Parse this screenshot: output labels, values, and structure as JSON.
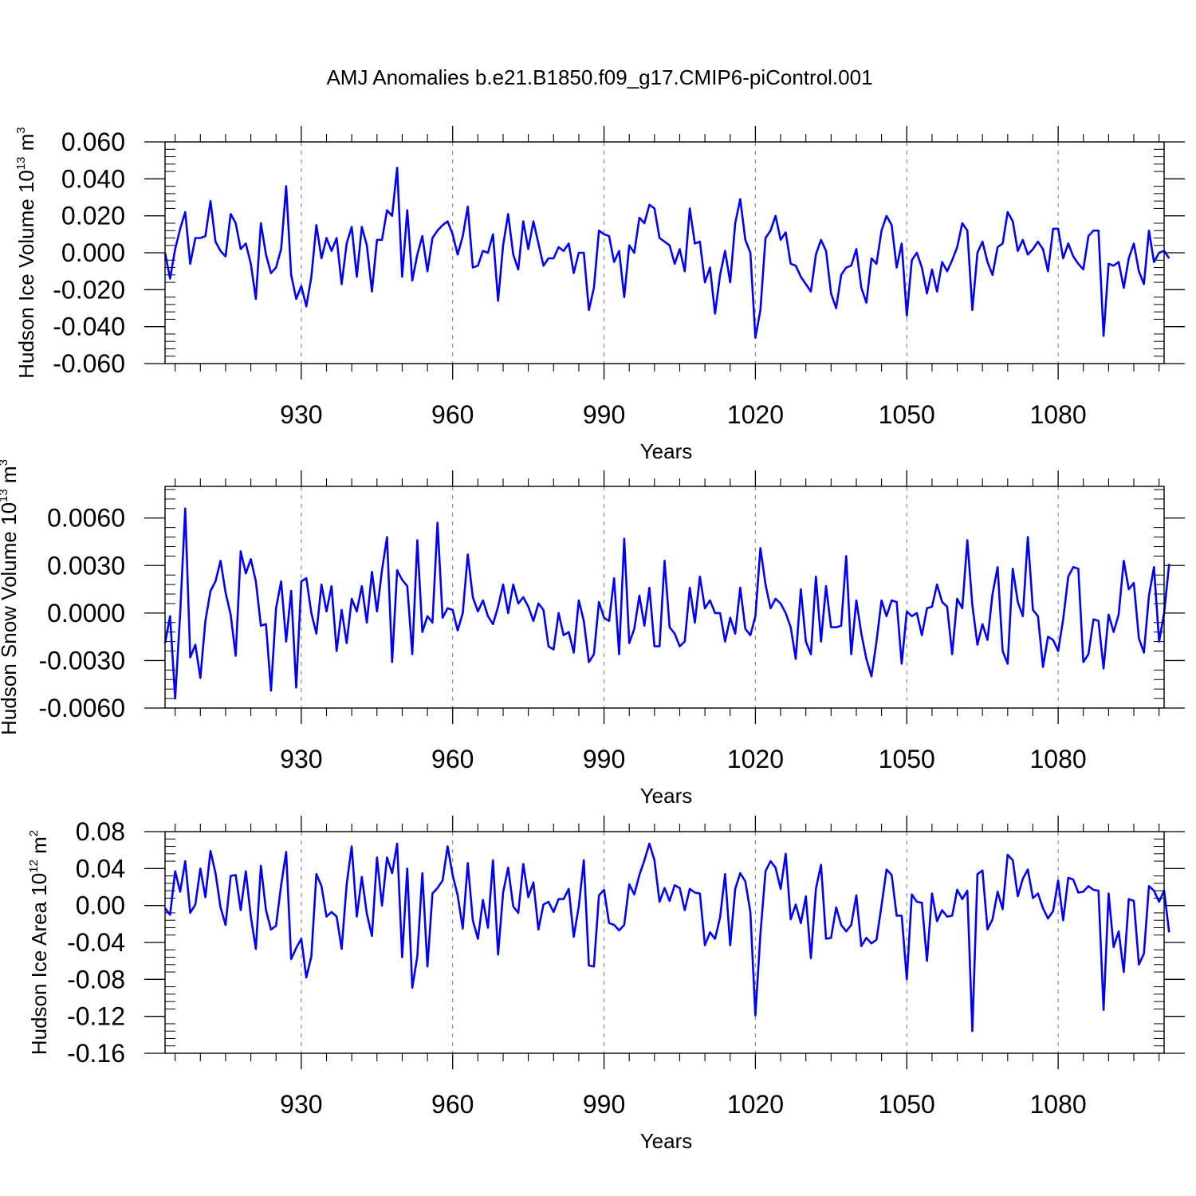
{
  "chart_data": {
    "type": "line",
    "title": "AMJ Anomalies b.e21.B1850.f09_g17.CMIP6-piControl.001",
    "panels": [
      {
        "id": "ice-volume",
        "ylabel_prefix": "Hudson Ice Volume 10",
        "ylabel_exp": "13",
        "ylabel_unit": " m",
        "ylabel_unit_exp": "3",
        "xlabel": "Years",
        "xlim": [
          903,
          1101
        ],
        "ylim": [
          -0.06,
          0.06
        ],
        "yticks": [
          -0.06,
          -0.04,
          -0.02,
          0.0,
          0.02,
          0.04,
          0.06
        ],
        "ytick_labels": [
          "-0.060",
          "-0.040",
          "-0.020",
          "0.000",
          "0.020",
          "0.040",
          "0.060"
        ],
        "xticks": [
          930,
          960,
          990,
          1020,
          1050,
          1080
        ],
        "xtick_labels": [
          "930",
          "960",
          "990",
          "1020",
          "1050",
          "1080"
        ],
        "line_color": "#0000ff",
        "series": [
          {
            "name": "Hudson Ice Volume",
            "start_year": 903,
            "values": [
              0.0,
              -0.014,
              0.002,
              0.013,
              0.022,
              -0.006,
              0.008,
              0.008,
              0.009,
              0.028,
              0.006,
              0.001,
              -0.002,
              0.021,
              0.016,
              0.002,
              0.005,
              -0.006,
              -0.025,
              0.016,
              -0.001,
              -0.011,
              -0.008,
              0.002,
              0.036,
              -0.012,
              -0.025,
              -0.018,
              -0.029,
              -0.013,
              0.015,
              -0.003,
              0.008,
              0.001,
              0.008,
              -0.017,
              0.005,
              0.014,
              -0.013,
              0.014,
              0.004,
              -0.021,
              0.007,
              0.007,
              0.023,
              0.02,
              0.046,
              -0.013,
              0.023,
              -0.015,
              -0.001,
              0.009,
              -0.01,
              0.008,
              0.012,
              0.015,
              0.017,
              0.01,
              -0.001,
              0.009,
              0.025,
              -0.008,
              -0.007,
              0.001,
              0.0,
              0.01,
              -0.026,
              0.004,
              0.021,
              -0.001,
              -0.009,
              0.017,
              0.002,
              0.017,
              0.005,
              -0.007,
              -0.003,
              -0.003,
              0.003,
              0.001,
              0.005,
              -0.011,
              0.0,
              0.0,
              -0.031,
              -0.019,
              0.012,
              0.01,
              0.009,
              -0.005,
              0.001,
              -0.024,
              0.004,
              0.0,
              0.019,
              0.016,
              0.026,
              0.024,
              0.008,
              0.006,
              0.004,
              -0.006,
              0.002,
              -0.01,
              0.024,
              0.005,
              0.006,
              -0.016,
              -0.008,
              -0.033,
              -0.012,
              0.001,
              -0.016,
              0.016,
              0.029,
              0.007,
              0.0,
              -0.046,
              -0.031,
              0.008,
              0.012,
              0.02,
              0.007,
              0.011,
              -0.006,
              -0.007,
              -0.013,
              -0.017,
              -0.021,
              -0.001,
              0.007,
              0.001,
              -0.022,
              -0.03,
              -0.012,
              -0.008,
              -0.007,
              0.002,
              -0.019,
              -0.027,
              -0.003,
              -0.006,
              0.012,
              0.02,
              0.015,
              -0.008,
              0.005,
              -0.034,
              -0.004,
              0.0,
              -0.008,
              -0.022,
              -0.009,
              -0.021,
              -0.005,
              -0.01,
              -0.004,
              0.003,
              0.016,
              0.012,
              -0.031,
              0.0,
              0.006,
              -0.005,
              -0.012,
              0.003,
              0.005,
              0.022,
              0.017,
              0.001,
              0.007,
              -0.001,
              0.002,
              0.006,
              0.002,
              -0.01,
              0.013,
              0.013,
              -0.003,
              0.005,
              -0.002,
              -0.006,
              -0.009,
              0.009,
              0.012,
              0.012,
              -0.045,
              -0.006,
              -0.007,
              -0.005,
              -0.019,
              -0.003,
              0.005,
              -0.01,
              -0.017,
              0.012,
              -0.005,
              0.0,
              0.001,
              -0.003
            ]
          }
        ]
      },
      {
        "id": "snow-volume",
        "ylabel_prefix": "Hudson Snow Volume 10",
        "ylabel_exp": "13",
        "ylabel_unit": " m",
        "ylabel_unit_exp": "3",
        "xlabel": "Years",
        "xlim": [
          903,
          1101
        ],
        "ylim": [
          -0.006,
          0.008
        ],
        "yticks": [
          -0.006,
          -0.003,
          0.0,
          0.003,
          0.006
        ],
        "ytick_labels": [
          "-0.0060",
          "-0.0030",
          "0.0000",
          "0.0030",
          "0.0060"
        ],
        "xticks": [
          930,
          960,
          990,
          1020,
          1050,
          1080
        ],
        "xtick_labels": [
          "930",
          "960",
          "990",
          "1020",
          "1050",
          "1080"
        ],
        "line_color": "#0000ff",
        "series": [
          {
            "name": "Hudson Snow Volume",
            "start_year": 903,
            "values": [
              -0.0019,
              -0.0002,
              -0.0054,
              0.0,
              0.0066,
              -0.0028,
              -0.002,
              -0.0041,
              -0.0005,
              0.0014,
              0.002,
              0.0033,
              0.0013,
              -0.0001,
              -0.0027,
              0.0039,
              0.0025,
              0.0034,
              0.002,
              -0.0008,
              -0.0007,
              -0.0049,
              0.0003,
              0.002,
              -0.0018,
              0.0014,
              -0.0047,
              0.002,
              0.0022,
              0.0,
              -0.0013,
              0.0018,
              0.0001,
              0.0017,
              -0.0024,
              0.0002,
              -0.0019,
              0.0009,
              0.0001,
              0.0017,
              -0.0006,
              0.0026,
              0.0001,
              0.0027,
              0.0048,
              -0.0031,
              0.0027,
              0.0021,
              0.0017,
              -0.0026,
              0.0046,
              -0.0012,
              -0.0002,
              -0.0006,
              0.0057,
              -0.0003,
              0.0003,
              0.0002,
              -0.0011,
              0.0,
              0.0037,
              0.001,
              0.0001,
              0.0008,
              -0.0002,
              -0.0007,
              0.0004,
              0.0018,
              0.0,
              0.0018,
              0.0006,
              0.001,
              0.0004,
              -0.0005,
              0.0006,
              0.0002,
              -0.0021,
              -0.0023,
              0.0,
              -0.0014,
              -0.0012,
              -0.0025,
              0.0008,
              -0.0005,
              -0.0031,
              -0.0026,
              0.0007,
              -0.0003,
              -0.0005,
              0.0022,
              -0.0026,
              0.0047,
              -0.0019,
              -0.001,
              0.0011,
              -0.0008,
              0.0016,
              -0.0021,
              -0.0021,
              0.0033,
              -0.0009,
              -0.0013,
              -0.0021,
              -0.0018,
              0.0016,
              -0.0006,
              0.0023,
              0.0003,
              0.0008,
              0.0,
              0.0,
              -0.0018,
              -0.0003,
              -0.0013,
              0.0016,
              -0.001,
              -0.0014,
              -0.0002,
              0.0041,
              0.0018,
              0.0003,
              0.0009,
              0.0006,
              0.0,
              -0.0009,
              -0.0029,
              0.0015,
              -0.0018,
              -0.0026,
              0.0023,
              -0.0018,
              0.0017,
              -0.0009,
              -0.0009,
              -0.0008,
              0.0036,
              -0.0026,
              0.0008,
              -0.0013,
              -0.0029,
              -0.004,
              -0.0018,
              0.0008,
              -0.0002,
              0.0008,
              0.0007,
              -0.0032,
              0.0001,
              -0.0002,
              0.0,
              -0.0014,
              0.0003,
              0.0004,
              0.0018,
              0.0007,
              0.0004,
              -0.0026,
              0.0009,
              0.0003,
              0.0046,
              0.0005,
              -0.002,
              -0.0007,
              -0.0017,
              0.0012,
              0.0029,
              -0.0024,
              -0.0032,
              0.0028,
              0.0007,
              -0.0002,
              0.0048,
              0.0002,
              -0.0002,
              -0.0034,
              -0.0015,
              -0.0017,
              -0.0024,
              -0.0004,
              0.0023,
              0.0029,
              0.0028,
              -0.0031,
              -0.0026,
              -0.0004,
              -0.0005,
              -0.0035,
              -0.0001,
              -0.0012,
              -0.0001,
              0.0033,
              0.0015,
              0.0019,
              -0.0016,
              -0.0025,
              0.0011,
              0.0029,
              -0.0018,
              0.0,
              0.0031
            ]
          }
        ]
      },
      {
        "id": "ice-area",
        "ylabel_prefix": "Hudson Ice Area 10",
        "ylabel_exp": "12",
        "ylabel_unit": " m",
        "ylabel_unit_exp": "2",
        "xlabel": "Years",
        "xlim": [
          903,
          1101
        ],
        "ylim": [
          -0.16,
          0.08
        ],
        "yticks": [
          -0.16,
          -0.12,
          -0.08,
          -0.04,
          0.0,
          0.04,
          0.08
        ],
        "ytick_labels": [
          "-0.16",
          "-0.12",
          "-0.08",
          "-0.04",
          "0.00",
          "0.04",
          "0.08"
        ],
        "xticks": [
          930,
          960,
          990,
          1020,
          1050,
          1080
        ],
        "xtick_labels": [
          "930",
          "960",
          "990",
          "1020",
          "1050",
          "1080"
        ],
        "line_color": "#0000ff",
        "series": [
          {
            "name": "Hudson Ice Area",
            "start_year": 903,
            "values": [
              -0.003,
              -0.01,
              0.037,
              0.015,
              0.048,
              -0.008,
              0.001,
              0.04,
              0.009,
              0.059,
              0.035,
              -0.002,
              -0.021,
              0.032,
              0.033,
              -0.005,
              0.037,
              -0.012,
              -0.047,
              0.043,
              -0.005,
              -0.026,
              -0.022,
              0.022,
              0.058,
              -0.058,
              -0.046,
              -0.036,
              -0.078,
              -0.055,
              0.034,
              0.021,
              -0.012,
              -0.007,
              -0.012,
              -0.047,
              0.023,
              0.064,
              -0.012,
              0.031,
              -0.009,
              -0.033,
              0.052,
              0.0,
              0.052,
              0.035,
              0.067,
              -0.056,
              0.04,
              -0.089,
              -0.055,
              0.035,
              -0.066,
              0.013,
              0.019,
              0.027,
              0.064,
              0.033,
              0.011,
              -0.025,
              0.046,
              -0.016,
              -0.036,
              0.006,
              -0.024,
              0.049,
              -0.053,
              0.014,
              0.041,
              -0.001,
              -0.008,
              0.045,
              0.009,
              0.025,
              -0.026,
              0.001,
              0.004,
              -0.007,
              0.007,
              0.007,
              0.018,
              -0.034,
              -0.001,
              0.049,
              -0.065,
              -0.066,
              0.011,
              0.017,
              -0.019,
              -0.021,
              -0.027,
              -0.021,
              0.023,
              0.012,
              0.033,
              0.049,
              0.067,
              0.049,
              0.004,
              0.019,
              0.005,
              0.022,
              0.019,
              -0.005,
              0.018,
              0.014,
              0.013,
              -0.043,
              -0.029,
              -0.036,
              -0.013,
              0.034,
              -0.043,
              0.018,
              0.035,
              0.026,
              -0.007,
              -0.119,
              -0.031,
              0.037,
              0.048,
              0.041,
              0.018,
              0.056,
              -0.015,
              0.001,
              -0.019,
              0.01,
              -0.057,
              0.018,
              0.044,
              -0.036,
              -0.035,
              -0.002,
              -0.021,
              -0.028,
              -0.021,
              0.011,
              -0.044,
              -0.035,
              -0.041,
              -0.037,
              0.0,
              0.039,
              0.033,
              -0.011,
              -0.011,
              -0.08,
              0.012,
              0.004,
              0.003,
              -0.06,
              0.013,
              -0.017,
              -0.005,
              -0.012,
              -0.011,
              0.017,
              0.007,
              0.016,
              -0.136,
              0.034,
              0.038,
              -0.026,
              -0.015,
              0.015,
              -0.004,
              0.055,
              0.049,
              0.01,
              0.029,
              0.039,
              0.008,
              0.013,
              -0.003,
              -0.014,
              -0.006,
              0.027,
              -0.016,
              0.03,
              0.028,
              0.014,
              0.015,
              0.021,
              0.017,
              0.016,
              -0.113,
              0.013,
              -0.045,
              -0.028,
              -0.072,
              0.007,
              0.005,
              -0.064,
              -0.052,
              0.021,
              0.016,
              0.004,
              0.016,
              -0.029
            ]
          }
        ]
      }
    ]
  }
}
